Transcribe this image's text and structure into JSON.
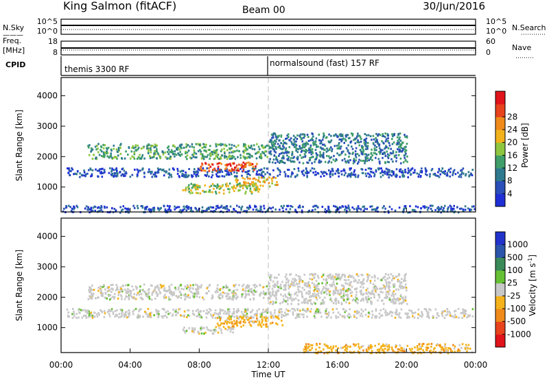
{
  "header": {
    "station": "King Salmon (fitACF)",
    "beam": "Beam 00",
    "date": "30/Jun/2016"
  },
  "strips": {
    "nsky_label": "N.Sky",
    "nsky_ticks": [
      "10^5",
      "10^0"
    ],
    "nsearch_ticks": [
      "10^5",
      "10^0"
    ],
    "nsearch_label": "N.Search",
    "freq_label_line1": "Freq.",
    "freq_label_line2": "[MHz]",
    "freq_ticks": [
      "18",
      "8"
    ],
    "nave_ticks": [
      "60",
      "0"
    ],
    "nave_label": "Nave",
    "cpid_label": "CPID",
    "cpid_segments": [
      {
        "label": "themis 3300 RF",
        "start_hour": 0,
        "end_hour": 12
      },
      {
        "label": "normalsound (fast) 157 RF",
        "start_hour": 12,
        "end_hour": 24
      }
    ]
  },
  "chart_data": [
    {
      "type": "heatmap",
      "panel": "power",
      "xlabel": "",
      "ylabel": "Slant Range [km]",
      "xlim": [
        0,
        24
      ],
      "ylim": [
        180,
        4600
      ],
      "yticks": [
        1000,
        2000,
        3000,
        4000
      ],
      "colorbar": {
        "label": "Power [dB]",
        "ticks": [
          "4",
          "8",
          "12",
          "16",
          "20",
          "24",
          "28"
        ],
        "colors": [
          "#1f2fd6",
          "#2a4fb8",
          "#2f7a8f",
          "#3f9e6a",
          "#8ec63f",
          "#f2b21c",
          "#f08a1a",
          "#e8431c",
          "#e0141a"
        ]
      },
      "echo_regions": [
        {
          "start_hour": 0.3,
          "end_hour": 23.8,
          "range_low": 1350,
          "range_high": 1650,
          "level": 1
        },
        {
          "start_hour": 1.5,
          "end_hour": 12.0,
          "range_low": 1950,
          "range_high": 2450,
          "level": 3
        },
        {
          "start_hour": 8.0,
          "end_hour": 11.3,
          "range_low": 1550,
          "range_high": 1850,
          "level": 7
        },
        {
          "start_hour": 7.0,
          "end_hour": 11.5,
          "range_low": 820,
          "range_high": 1150,
          "level": 4
        },
        {
          "start_hour": 10.0,
          "end_hour": 12.5,
          "range_low": 1050,
          "range_high": 1350,
          "level": 5
        },
        {
          "start_hour": 12.0,
          "end_hour": 20.0,
          "range_low": 1800,
          "range_high": 2800,
          "level": 2
        },
        {
          "start_hour": 0.0,
          "end_hour": 24.0,
          "range_low": 190,
          "range_high": 420,
          "level": 1
        }
      ]
    },
    {
      "type": "heatmap",
      "panel": "velocity",
      "xlabel": "Time UT",
      "ylabel": "Slant Range [km]",
      "xlim": [
        0,
        24
      ],
      "ylim": [
        180,
        4600
      ],
      "xticks": [
        "00:00",
        "04:00",
        "08:00",
        "12:00",
        "16:00",
        "20:00",
        "00:00"
      ],
      "yticks": [
        1000,
        2000,
        3000,
        4000
      ],
      "colorbar": {
        "label": "Velocity [m s-1]",
        "label_main": "Velocity [m s",
        "label_exp": "-1",
        "label_close": "]",
        "ticks": [
          "1000",
          "500",
          "100",
          "25",
          "-25",
          "-100",
          "-500",
          "-1000"
        ],
        "colors": [
          "#2233cc",
          "#2a55aa",
          "#3a8a5a",
          "#66c033",
          "#c8c8c8",
          "#f5b21a",
          "#f08a1a",
          "#e8431c",
          "#e0141a"
        ]
      },
      "echo_regions": [
        {
          "start_hour": 0.3,
          "end_hour": 23.8,
          "range_low": 1350,
          "range_high": 1650,
          "class": "ground"
        },
        {
          "start_hour": 1.5,
          "end_hour": 12.0,
          "range_low": 1950,
          "range_high": 2450,
          "class": "ground"
        },
        {
          "start_hour": 9.0,
          "end_hour": 12.8,
          "range_low": 1050,
          "range_high": 1400,
          "class": "negative"
        },
        {
          "start_hour": 7.0,
          "end_hour": 10.0,
          "range_low": 820,
          "range_high": 1050,
          "class": "ground"
        },
        {
          "start_hour": 12.0,
          "end_hour": 20.0,
          "range_low": 1800,
          "range_high": 2800,
          "class": "ground"
        },
        {
          "start_hour": 14.0,
          "end_hour": 23.8,
          "range_low": 190,
          "range_high": 500,
          "class": "negative"
        }
      ]
    }
  ]
}
